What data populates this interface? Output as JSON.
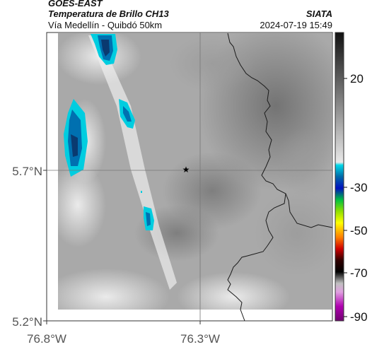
{
  "header": {
    "satellite": "GOES-EAST",
    "product": "Temperatura de Brillo CH13",
    "location": "Vía Medellín - Quibdó 50km",
    "source": "SIATA",
    "timestamp": "2024-07-19 15:49"
  },
  "axes": {
    "x_ticks": [
      "76.8°W",
      "76.3°W"
    ],
    "y_ticks": [
      "5.7°N",
      "5.2°N"
    ]
  },
  "colorbar": {
    "ticks": [
      "20",
      "-30",
      "-50",
      "-70",
      "-90"
    ]
  },
  "marker": {
    "symbol": "★"
  }
}
